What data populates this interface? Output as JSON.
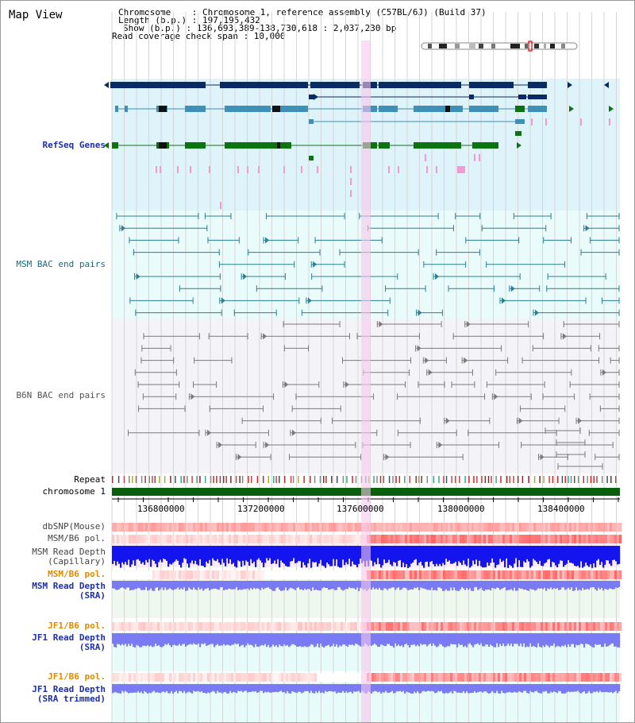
{
  "title": "Map View",
  "info": {
    "chromosome_line": "Chromosome    : Chromosome 1, reference assembly (C57BL/6J) (Build 37)",
    "length_line": "Length (b.p.) : 197,195,432",
    "show_line": "Show (b.p.) : 136,693,389-138,730,618 : 2,037,230 bp",
    "span_line": "Read coverage check span : 10,000"
  },
  "tracks": {
    "refseq": "RefSeq Genes",
    "msm_bac": "MSM BAC end pairs",
    "b6n_bac": "B6N BAC end pairs",
    "repeat": "Repeat",
    "chromosome": "chromosome 1",
    "dbsnp": "dbSNP(Mouse)",
    "msm_b6_pol_1": "MSM/B6 pol.",
    "msm_depth_cap_1": "MSM Read Depth",
    "msm_depth_cap_2": "(Capillary)",
    "msm_b6_pol_2": "MSM/B6 pol.",
    "msm_depth_sra_1": "MSM Read Depth",
    "msm_depth_sra_2": "(SRA)",
    "jf1_b6_pol_1": "JF1/B6 pol.",
    "jf1_depth_sra_1": "JF1 Read Depth",
    "jf1_depth_sra_2": "(SRA)",
    "jf1_b6_pol_2": "JF1/B6 pol.",
    "jf1_depth_trim_1": "JF1 Read Depth",
    "jf1_depth_trim_2": "(SRA trimmed)"
  },
  "axis": {
    "ticks": [
      "136800000",
      "137200000",
      "137600000",
      "138000000",
      "138400000"
    ]
  },
  "colors": {
    "refseq_bg": "#dff3fb",
    "msm_bg": "#e9fbfb",
    "b6n_bg": "#f4f4f8",
    "highlight": "#f7c8ec",
    "gene_dark": "#0a2a63",
    "gene_mid": "#3f90b6",
    "gene_green": "#0d7310",
    "chromosome_bar": "#0b5e0b",
    "depth_blue": "#1414ee",
    "depth_lavender": "#7a7af5"
  }
}
